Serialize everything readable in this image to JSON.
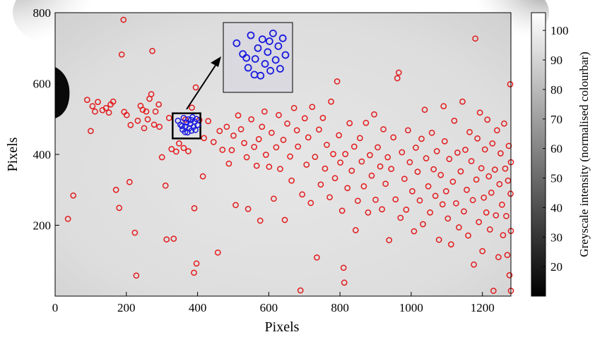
{
  "chart_data": {
    "type": "scatter",
    "title": "",
    "xlabel": "Pixels",
    "ylabel": "Pixels",
    "xlim": [
      0,
      1280
    ],
    "ylim": [
      0,
      800
    ],
    "x_ticks": [
      0,
      200,
      400,
      600,
      800,
      1000,
      1200
    ],
    "y_ticks": [
      200,
      400,
      600,
      800
    ],
    "grid": false,
    "background": "greyscale image",
    "colorbar": {
      "label": "Greyscale intensity (normalised colourbar)",
      "range": [
        10,
        106
      ],
      "ticks": [
        20,
        30,
        40,
        50,
        60,
        70,
        80,
        90,
        100
      ],
      "colormap": "grey"
    },
    "highlight_box": {
      "x_range": [
        330,
        408
      ],
      "y_range": [
        445,
        516
      ],
      "color": "#000000"
    },
    "inset": {
      "description_source": "magnified view of highlight box",
      "marker_color": "#1a1adf"
    },
    "series": [
      {
        "color": "#e31a1c",
        "marker": "open-circle",
        "points": [
          [
            36,
            218
          ],
          [
            51,
            284
          ],
          [
            90,
            554
          ],
          [
            100,
            466
          ],
          [
            105,
            536
          ],
          [
            112,
            521
          ],
          [
            120,
            548
          ],
          [
            133,
            525
          ],
          [
            143,
            531
          ],
          [
            151,
            518
          ],
          [
            156,
            541
          ],
          [
            163,
            549
          ],
          [
            171,
            300
          ],
          [
            180,
            249
          ],
          [
            187,
            682
          ],
          [
            192,
            780
          ],
          [
            194,
            520
          ],
          [
            201,
            511
          ],
          [
            209,
            322
          ],
          [
            212,
            483
          ],
          [
            224,
            179
          ],
          [
            228,
            58
          ],
          [
            232,
            495
          ],
          [
            240,
            537
          ],
          [
            246,
            526
          ],
          [
            250,
            474
          ],
          [
            256,
            521
          ],
          [
            260,
            499
          ],
          [
            265,
            557
          ],
          [
            270,
            570
          ],
          [
            273,
            692
          ],
          [
            278,
            484
          ],
          [
            282,
            521
          ],
          [
            291,
            541
          ],
          [
            293,
            478
          ],
          [
            300,
            392
          ],
          [
            310,
            312
          ],
          [
            313,
            160
          ],
          [
            320,
            503
          ],
          [
            327,
            415
          ],
          [
            333,
            162
          ],
          [
            340,
            408
          ],
          [
            348,
            431
          ],
          [
            361,
            418
          ],
          [
            366,
            498
          ],
          [
            374,
            409
          ],
          [
            384,
            532
          ],
          [
            390,
            66
          ],
          [
            391,
            248
          ],
          [
            395,
            589
          ],
          [
            397,
            92
          ],
          [
            405,
            497
          ],
          [
            415,
            338
          ],
          [
            418,
            446
          ],
          [
            430,
            494
          ],
          [
            445,
            435
          ],
          [
            457,
            123
          ],
          [
            462,
            466
          ],
          [
            470,
            413
          ],
          [
            482,
            478
          ],
          [
            488,
            374
          ],
          [
            496,
            412
          ],
          [
            501,
            453
          ],
          [
            507,
            257
          ],
          [
            514,
            510
          ],
          [
            522,
            471
          ],
          [
            531,
            432
          ],
          [
            538,
            392
          ],
          [
            542,
            246
          ],
          [
            551,
            499
          ],
          [
            559,
            421
          ],
          [
            566,
            368
          ],
          [
            572,
            443
          ],
          [
            576,
            213
          ],
          [
            581,
            478
          ],
          [
            588,
            521
          ],
          [
            592,
            399
          ],
          [
            601,
            365
          ],
          [
            608,
            461
          ],
          [
            614,
            275
          ],
          [
            621,
            420
          ],
          [
            628,
            511
          ],
          [
            632,
            359
          ],
          [
            641,
            441
          ],
          [
            645,
            215
          ],
          [
            652,
            487
          ],
          [
            660,
            394
          ],
          [
            664,
            326
          ],
          [
            671,
            531
          ],
          [
            679,
            468
          ],
          [
            682,
            422
          ],
          [
            689,
            16
          ],
          [
            694,
            287
          ],
          [
            701,
            502
          ],
          [
            706,
            371
          ],
          [
            711,
            448
          ],
          [
            718,
            263
          ],
          [
            722,
            534
          ],
          [
            730,
            393
          ],
          [
            735,
            109
          ],
          [
            741,
            470
          ],
          [
            746,
            315
          ],
          [
            752,
            503
          ],
          [
            758,
            360
          ],
          [
            763,
            427
          ],
          [
            771,
            279
          ],
          [
            775,
            549
          ],
          [
            781,
            401
          ],
          [
            786,
            333
          ],
          [
            792,
            606
          ],
          [
            797,
            454
          ],
          [
            801,
            377
          ],
          [
            806,
            241
          ],
          [
            810,
            80
          ],
          [
            812,
            38
          ],
          [
            815,
            401
          ],
          [
            821,
            305
          ],
          [
            827,
            488
          ],
          [
            833,
            354
          ],
          [
            840,
            422
          ],
          [
            844,
            186
          ],
          [
            850,
            269
          ],
          [
            856,
            446
          ],
          [
            861,
            380
          ],
          [
            867,
            310
          ],
          [
            873,
            489
          ],
          [
            879,
            236
          ],
          [
            884,
            398
          ],
          [
            889,
            340
          ],
          [
            896,
            513
          ],
          [
            900,
            272
          ],
          [
            906,
            420
          ],
          [
            913,
            366
          ],
          [
            918,
            245
          ],
          [
            922,
            471
          ],
          [
            928,
            317
          ],
          [
            934,
            392
          ],
          [
            938,
            158
          ],
          [
            944,
            359
          ],
          [
            950,
            448
          ],
          [
            956,
            273
          ],
          [
            961,
            615
          ],
          [
            965,
            631
          ],
          [
            970,
            221
          ],
          [
            974,
            406
          ],
          [
            981,
            331
          ],
          [
            986,
            244
          ],
          [
            991,
            468
          ],
          [
            996,
            378
          ],
          [
            1003,
            296
          ],
          [
            1008,
            183
          ],
          [
            1013,
            419
          ],
          [
            1018,
            351
          ],
          [
            1024,
            270
          ],
          [
            1029,
            444
          ],
          [
            1033,
            203
          ],
          [
            1038,
            526
          ],
          [
            1042,
            389
          ],
          [
            1048,
            310
          ],
          [
            1053,
            236
          ],
          [
            1058,
            461
          ],
          [
            1063,
            358
          ],
          [
            1068,
            283
          ],
          [
            1072,
            409
          ],
          [
            1078,
            159
          ],
          [
            1083,
            342
          ],
          [
            1088,
            259
          ],
          [
            1091,
            536
          ],
          [
            1094,
            437
          ],
          [
            1098,
            296
          ],
          [
            1103,
            219
          ],
          [
            1107,
            387
          ],
          [
            1112,
            146
          ],
          [
            1117,
            323
          ],
          [
            1121,
            495
          ],
          [
            1126,
            262
          ],
          [
            1130,
            405
          ],
          [
            1134,
            194
          ],
          [
            1139,
            352
          ],
          [
            1144,
            549
          ],
          [
            1148,
            239
          ],
          [
            1152,
            413
          ],
          [
            1156,
            300
          ],
          [
            1160,
            171
          ],
          [
            1164,
            463
          ],
          [
            1169,
            381
          ],
          [
            1173,
            271
          ],
          [
            1176,
            89
          ],
          [
            1180,
            727
          ],
          [
            1183,
            329
          ],
          [
            1186,
            445
          ],
          [
            1190,
            209
          ],
          [
            1193,
            518
          ],
          [
            1197,
            361
          ],
          [
            1200,
            127
          ],
          [
            1204,
            278
          ],
          [
            1207,
            414
          ],
          [
            1211,
            236
          ],
          [
            1214,
            498
          ],
          [
            1218,
            338
          ],
          [
            1221,
            188
          ],
          [
            1225,
            292
          ],
          [
            1228,
            431
          ],
          [
            1231,
            15
          ],
          [
            1235,
            357
          ],
          [
            1238,
            228
          ],
          [
            1241,
            468
          ],
          [
            1245,
            110
          ],
          [
            1248,
            316
          ],
          [
            1251,
            403
          ],
          [
            1255,
            258
          ],
          [
            1258,
            172
          ],
          [
            1261,
            487
          ],
          [
            1264,
            360
          ],
          [
            1267,
            226
          ],
          [
            1270,
            116
          ],
          [
            1272,
            326
          ],
          [
            1274,
            424
          ],
          [
            1276,
            59
          ],
          [
            1278,
            598
          ],
          [
            1279,
            289
          ],
          [
            1280,
            15
          ],
          [
            1280,
            184
          ],
          [
            1280,
            378
          ]
        ]
      },
      {
        "color": "#1a1adf",
        "marker": "open-circle",
        "points": [
          [
            345,
            495
          ],
          [
            352,
            484
          ],
          [
            358,
            470
          ],
          [
            361,
            503
          ],
          [
            366,
            479
          ],
          [
            369,
            490
          ],
          [
            372,
            462
          ],
          [
            374,
            499
          ],
          [
            377,
            474
          ],
          [
            380,
            486
          ],
          [
            383,
            467
          ],
          [
            386,
            505
          ],
          [
            389,
            478
          ],
          [
            392,
            492
          ],
          [
            394,
            469
          ],
          [
            397,
            500
          ],
          [
            400,
            483
          ],
          [
            382,
            497
          ],
          [
            365,
            463
          ],
          [
            356,
            480
          ]
        ]
      }
    ]
  }
}
